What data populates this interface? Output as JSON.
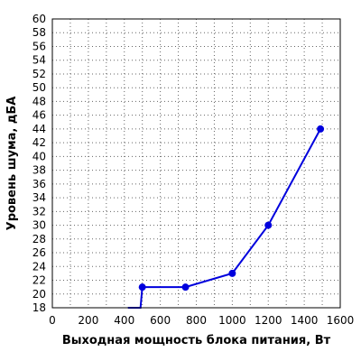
{
  "chart_data": {
    "type": "line",
    "title": "",
    "xlabel": "Выходная мощность блока питания, Вт",
    "ylabel": "Уровень шума, дБА",
    "xlim": [
      0,
      1600
    ],
    "ylim": [
      18,
      60
    ],
    "xticks": [
      0,
      200,
      400,
      600,
      800,
      1000,
      1200,
      1400,
      1600
    ],
    "yticks": [
      18,
      20,
      22,
      24,
      26,
      28,
      30,
      32,
      34,
      36,
      38,
      40,
      42,
      44,
      46,
      48,
      50,
      52,
      54,
      56,
      58,
      60
    ],
    "grid": true,
    "colors": {
      "series": "#0000dd"
    },
    "series": [
      {
        "x": [
          420,
          490,
          500,
          740,
          1000,
          1200,
          1490
        ],
        "y": [
          18,
          18,
          21,
          21,
          23,
          30,
          44
        ],
        "markers": [
          false,
          false,
          true,
          true,
          true,
          true,
          true
        ]
      }
    ]
  }
}
